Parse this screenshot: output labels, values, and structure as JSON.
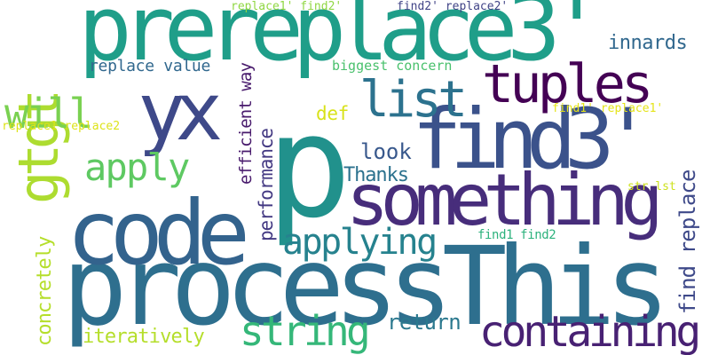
{
  "word_cloud": {
    "words": [
      {
        "text": "processThis",
        "color": "#2e6f8e"
      },
      {
        "text": "p",
        "color": "#21918c"
      },
      {
        "text": "prereplace3'",
        "color": "#1f9e89"
      },
      {
        "text": "find3'",
        "color": "#3b528b"
      },
      {
        "text": "code",
        "color": "#33638d"
      },
      {
        "text": "something",
        "color": "#472d7b"
      },
      {
        "text": "yx",
        "color": "#3e4989"
      },
      {
        "text": "gtgt",
        "color": "#addc30"
      },
      {
        "text": "tuples",
        "color": "#440154"
      },
      {
        "text": "list",
        "color": "#2c728e"
      },
      {
        "text": "containing",
        "color": "#482173"
      },
      {
        "text": "string",
        "color": "#35b779"
      },
      {
        "text": "apply",
        "color": "#5ec962"
      },
      {
        "text": "applying",
        "color": "#26828e"
      },
      {
        "text": "will",
        "color": "#7ad151"
      },
      {
        "text": "innards",
        "color": "#31688e"
      },
      {
        "text": "replace value",
        "color": "#31688e"
      },
      {
        "text": "efficient way",
        "color": "#481a6c"
      },
      {
        "text": "performance",
        "color": "#443a83"
      },
      {
        "text": "concretely",
        "color": "#b5de2b"
      },
      {
        "text": "iteratively",
        "color": "#b5de2b"
      },
      {
        "text": "return",
        "color": "#2a788e"
      },
      {
        "text": "look",
        "color": "#38588c"
      },
      {
        "text": "Thanks",
        "color": "#2c728e"
      },
      {
        "text": "def",
        "color": "#d8e219"
      },
      {
        "text": "find replace",
        "color": "#3e4989"
      },
      {
        "text": "biggest concern",
        "color": "#4ac16d"
      },
      {
        "text": "replace1' find2'",
        "color": "#90d743"
      },
      {
        "text": "find2' replace2'",
        "color": "#414487"
      },
      {
        "text": "find1' replace1'",
        "color": "#e5e419"
      },
      {
        "text": "replace1 replace2",
        "color": "#dde318"
      },
      {
        "text": "str lst",
        "color": "#cde11d"
      },
      {
        "text": "find1 find2",
        "color": "#2db27d"
      }
    ]
  }
}
